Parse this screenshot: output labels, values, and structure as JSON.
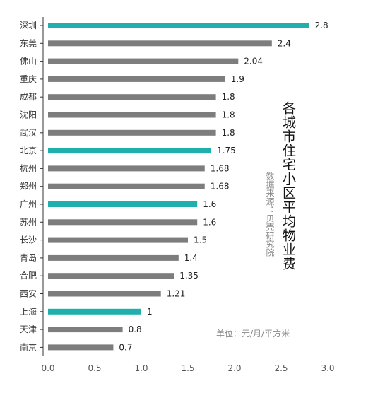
{
  "chart_data": {
    "type": "bar",
    "orientation": "horizontal",
    "title": "各城市住宅小区平均物业费",
    "source": "数据来源：贝壳研究院",
    "unit": "单位：元/月/平方米",
    "categories": [
      "深圳",
      "东莞",
      "佛山",
      "重庆",
      "成都",
      "沈阳",
      "武汉",
      "北京",
      "杭州",
      "郑州",
      "广州",
      "苏州",
      "长沙",
      "青岛",
      "合肥",
      "西安",
      "上海",
      "天津",
      "南京"
    ],
    "values": [
      2.8,
      2.4,
      2.04,
      1.9,
      1.8,
      1.8,
      1.8,
      1.75,
      1.68,
      1.68,
      1.6,
      1.6,
      1.5,
      1.4,
      1.35,
      1.21,
      1,
      0.8,
      0.7
    ],
    "value_labels": [
      "2.8",
      "2.4",
      "2.04",
      "1.9",
      "1.8",
      "1.8",
      "1.8",
      "1.75",
      "1.68",
      "1.68",
      "1.6",
      "1.6",
      "1.5",
      "1.4",
      "1.35",
      "1.21",
      "1",
      "0.8",
      "0.7"
    ],
    "highlighted": [
      "深圳",
      "北京",
      "广州",
      "上海"
    ],
    "xlim": [
      0,
      3.0
    ],
    "xticks": [
      "0.0",
      "0.5",
      "1.0",
      "1.5",
      "2.0",
      "2.5",
      "3.0"
    ],
    "grid": false,
    "colors": {
      "highlight": "#1fb0ae",
      "normal": "#7d7d7d",
      "axis": "#333333"
    }
  }
}
